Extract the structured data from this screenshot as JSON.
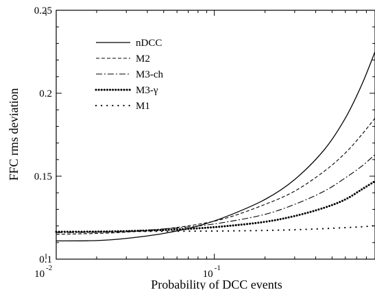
{
  "chart_data": {
    "type": "line",
    "title": "",
    "xlabel": "Probability of DCC events",
    "ylabel": "FFC rms deviation",
    "xscale": "log",
    "xlim": [
      0.0115,
      0.9
    ],
    "ylim": [
      0.1,
      0.25
    ],
    "grid": false,
    "legend_position": "top-left",
    "x_ticks": [
      {
        "value": 0.01,
        "base": "10",
        "exp": "-2"
      },
      {
        "value": 0.1,
        "base": "10",
        "exp": "-1"
      }
    ],
    "y_ticks": [
      {
        "value": 0.1,
        "label": "0.1"
      },
      {
        "value": 0.15,
        "label": "0.15"
      },
      {
        "value": 0.2,
        "label": "0.2"
      },
      {
        "value": 0.25,
        "label": "0.25"
      }
    ],
    "series": [
      {
        "name": "nDCC",
        "style": "solid",
        "x": [
          0.0115,
          0.02,
          0.03,
          0.05,
          0.08,
          0.12,
          0.2,
          0.3,
          0.45,
          0.6,
          0.75,
          0.9
        ],
        "y": [
          0.111,
          0.1112,
          0.1125,
          0.1155,
          0.12,
          0.126,
          0.136,
          0.148,
          0.166,
          0.185,
          0.205,
          0.225
        ]
      },
      {
        "name": "M2",
        "style": "dashed",
        "x": [
          0.0115,
          0.02,
          0.03,
          0.05,
          0.08,
          0.12,
          0.2,
          0.3,
          0.45,
          0.6,
          0.75,
          0.9
        ],
        "y": [
          0.115,
          0.1155,
          0.1163,
          0.1182,
          0.121,
          0.125,
          0.133,
          0.141,
          0.153,
          0.164,
          0.175,
          0.185
        ]
      },
      {
        "name": "M3-ch",
        "style": "dashdot",
        "x": [
          0.0115,
          0.02,
          0.03,
          0.05,
          0.08,
          0.12,
          0.2,
          0.3,
          0.45,
          0.6,
          0.75,
          0.9
        ],
        "y": [
          0.116,
          0.1162,
          0.1168,
          0.1182,
          0.12,
          0.1225,
          0.127,
          0.133,
          0.141,
          0.149,
          0.156,
          0.163
        ]
      },
      {
        "name": "M3-γ",
        "style": "thick-dotted",
        "x": [
          0.0115,
          0.02,
          0.03,
          0.05,
          0.08,
          0.12,
          0.2,
          0.3,
          0.45,
          0.6,
          0.75,
          0.9
        ],
        "y": [
          0.1165,
          0.1166,
          0.1169,
          0.1176,
          0.1186,
          0.12,
          0.1225,
          0.126,
          0.131,
          0.136,
          0.142,
          0.147
        ]
      },
      {
        "name": "M1",
        "style": "sparse-dotted",
        "x": [
          0.0115,
          0.02,
          0.03,
          0.05,
          0.08,
          0.12,
          0.2,
          0.3,
          0.45,
          0.6,
          0.75,
          0.9
        ],
        "y": [
          0.1165,
          0.1166,
          0.1167,
          0.1168,
          0.1169,
          0.117,
          0.1173,
          0.1177,
          0.1184,
          0.119,
          0.1195,
          0.1202
        ]
      }
    ]
  }
}
